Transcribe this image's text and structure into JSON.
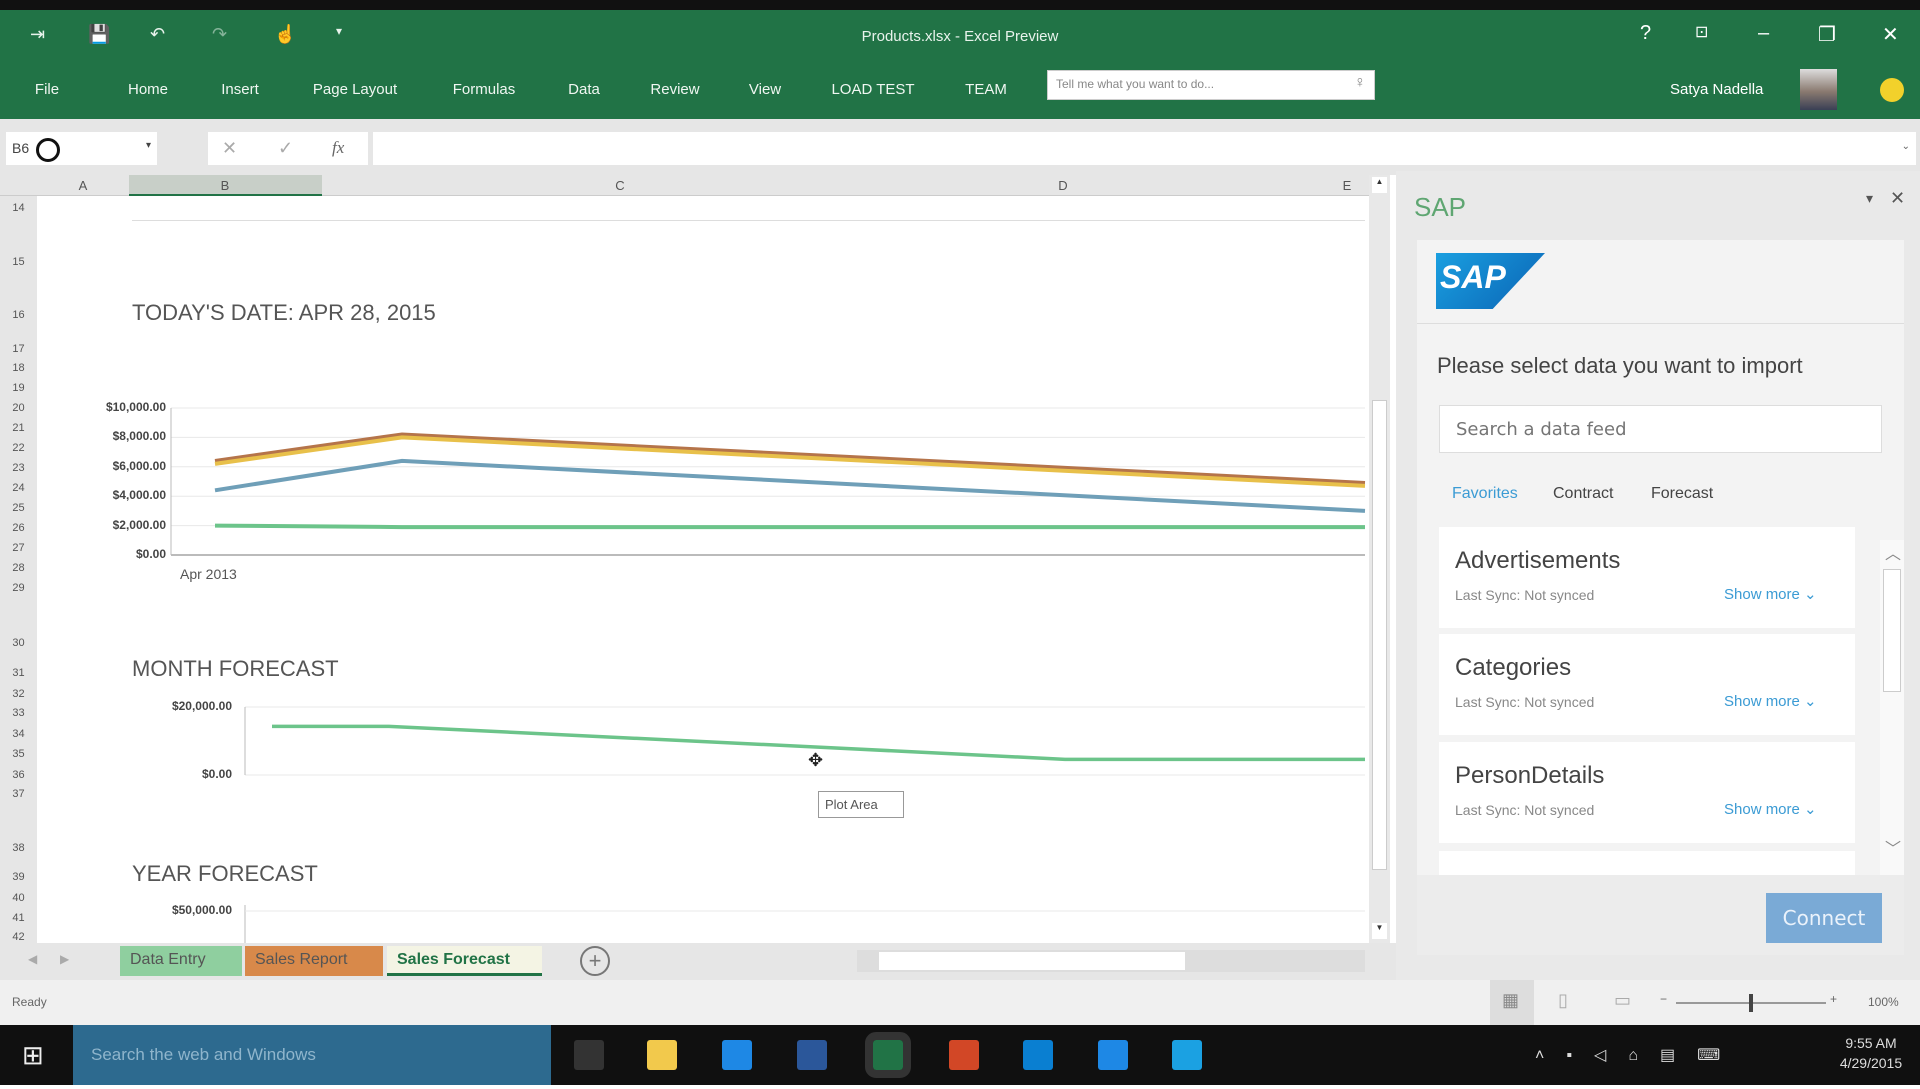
{
  "window": {
    "title": "Products.xlsx - Excel Preview",
    "user": "Satya Nadella",
    "help": "?",
    "minimize": "–",
    "restore": "❐",
    "close": "✕"
  },
  "ribbon": {
    "tabs": [
      "File",
      "Home",
      "Insert",
      "Page Layout",
      "Formulas",
      "Data",
      "Review",
      "View",
      "LOAD TEST",
      "TEAM"
    ],
    "tell_me_placeholder": "Tell me what you want to do..."
  },
  "formula_bar": {
    "name_box": "B6",
    "cancel": "✕",
    "enter": "✓",
    "fx": "fx",
    "value": ""
  },
  "columns": [
    "A",
    "B",
    "C",
    "D",
    "E"
  ],
  "rows": [
    "14",
    "15",
    "16",
    "17",
    "18",
    "19",
    "20",
    "21",
    "22",
    "23",
    "24",
    "25",
    "26",
    "27",
    "28",
    "29",
    "30",
    "31",
    "32",
    "33",
    "34",
    "35",
    "36",
    "37",
    "38",
    "39",
    "40",
    "41",
    "42"
  ],
  "sheet": {
    "date_label": "TODAY'S DATE: APR 28, 2015",
    "month_label": "MONTH FORECAST",
    "year_label": "YEAR FORECAST",
    "tooltip": "Plot Area"
  },
  "chart_data": [
    {
      "type": "line",
      "title": "",
      "ylim": [
        0,
        10000
      ],
      "yticks": [
        "$10,000.00",
        "$8,000.00",
        "$6,000.00",
        "$4,000.00",
        "$2,000.00",
        "$0.00"
      ],
      "categories": [
        "Apr 2013",
        "",
        ""
      ],
      "grid": true,
      "series": [
        {
          "color": "#b5744a",
          "values": [
            6400,
            8200,
            4900
          ]
        },
        {
          "color": "#e8c04a",
          "values": [
            6200,
            8000,
            4700
          ]
        },
        {
          "color": "#6f9fb8",
          "values": [
            4400,
            6400,
            3000
          ]
        },
        {
          "color": "#6cc48a",
          "values": [
            2000,
            1900,
            1900
          ]
        }
      ]
    },
    {
      "type": "line",
      "title": "MONTH FORECAST",
      "ylim": [
        0,
        20000
      ],
      "yticks": [
        "$20,000.00",
        "$0.00"
      ],
      "grid": true,
      "series": [
        {
          "color": "#6cc48a",
          "values": [
            14300,
            14300,
            8200,
            4600,
            4600
          ]
        }
      ]
    },
    {
      "type": "line",
      "title": "YEAR FORECAST",
      "yticks": [
        "$50,000.00"
      ]
    }
  ],
  "sheet_tabs": [
    {
      "label": "Data Entry",
      "color": "#8fcf9f"
    },
    {
      "label": "Sales Report",
      "color": "#d8894a"
    },
    {
      "label": "Sales Forecast",
      "color": "#f4f4e4"
    }
  ],
  "add_sheet": "+",
  "status": {
    "ready": "Ready",
    "zoom": "100%",
    "zoom_level": 100
  },
  "pane": {
    "title": "SAP",
    "logo": "SAP",
    "prompt": "Please select data you want to import",
    "search_placeholder": "Search a data feed",
    "tabs": [
      "Favorites",
      "Contract",
      "Forecast"
    ],
    "active_tab": "Favorites",
    "items": [
      {
        "name": "Advertisements",
        "sync": "Last Sync: Not synced",
        "more": "Show more ⌄"
      },
      {
        "name": "Categories",
        "sync": "Last Sync: Not synced",
        "more": "Show more ⌄"
      },
      {
        "name": "PersonDetails",
        "sync": "Last Sync: Not synced",
        "more": "Show more ⌄"
      }
    ],
    "connect": "Connect"
  },
  "taskbar": {
    "search_placeholder": "Search the web and Windows",
    "time": "9:55 AM",
    "date": "4/29/2015",
    "apps": [
      {
        "icon": "task-view-icon",
        "color": "#333"
      },
      {
        "icon": "file-explorer-icon",
        "color": "#f2c94c"
      },
      {
        "icon": "outlook-icon",
        "color": "#1e88e5"
      },
      {
        "icon": "word-icon",
        "color": "#2b579a"
      },
      {
        "icon": "excel-icon",
        "color": "#217346"
      },
      {
        "icon": "powerpoint-icon",
        "color": "#d24726"
      },
      {
        "icon": "skype-icon",
        "color": "#0a7fd1"
      },
      {
        "icon": "store-icon",
        "color": "#1e88e5"
      },
      {
        "icon": "edge-icon",
        "color": "#1ba1e2"
      }
    ]
  }
}
